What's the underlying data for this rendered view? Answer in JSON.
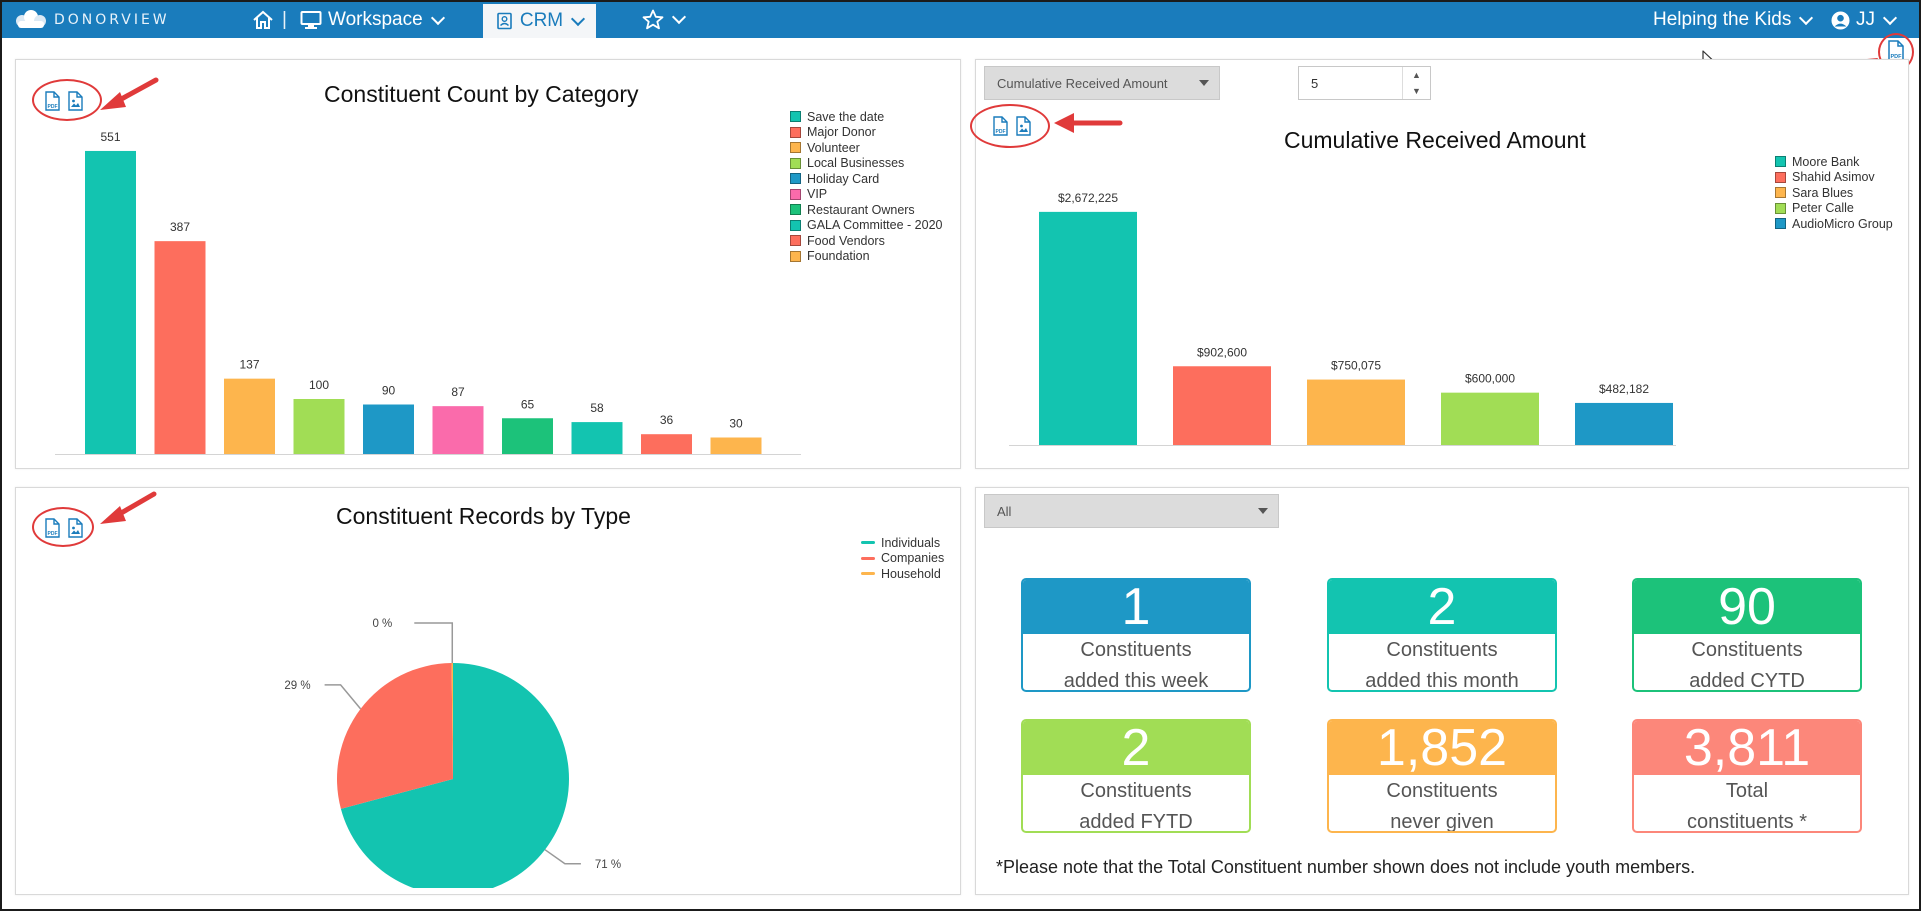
{
  "nav": {
    "logo_text": "DONORVIEW",
    "workspace_label": "Workspace",
    "crm_label": "CRM",
    "org_label": "Helping the Kids",
    "user_label": "JJ",
    "nav_color": "#1a7cbc"
  },
  "panel1": {
    "title": "Constituent Count by Category",
    "chart_data": {
      "type": "bar",
      "title": "Constituent Count by Category",
      "categories": [
        "Save the date",
        "Major Donor",
        "Volunteer",
        "Local Businesses",
        " Holiday Card",
        "VIP",
        "Restaurant Owners",
        "GALA Committee - 2020",
        "Food Vendors",
        "Foundation"
      ],
      "values": [
        551,
        387,
        137,
        100,
        90,
        87,
        65,
        58,
        36,
        30
      ],
      "data_labels": [
        "551",
        "387",
        "137",
        "100",
        "90",
        "87",
        "65",
        "58",
        "36",
        "30"
      ],
      "colors": [
        "#13c4b0",
        "#fd6e5d",
        "#fdb54d",
        "#a1dd55",
        "#1e98c6",
        "#fa6bab",
        "#1cc27a",
        "#13c4b0",
        "#fd6e5d",
        "#fdb54d"
      ],
      "ylim": [
        0,
        600
      ],
      "legend_position": "top-right",
      "xlabel": "",
      "ylabel": ""
    }
  },
  "panel2": {
    "title": "Cumulative Received Amount",
    "select_value": "Cumulative Received Amount",
    "count_value": "5",
    "chart_data": {
      "type": "bar",
      "title": "Cumulative Received Amount",
      "categories": [
        "Moore Bank",
        "Shahid Asimov",
        "Sara Blues",
        "Peter Calle",
        "AudioMicro Group"
      ],
      "values": [
        2672225,
        902600,
        750075,
        600000,
        482182
      ],
      "data_labels": [
        "$2,672,225",
        "$902,600",
        "$750,075",
        "$600,000",
        "$482,182"
      ],
      "colors": [
        "#13c4b0",
        "#fd6e5d",
        "#fdb54d",
        "#a1dd55",
        "#1e98c6"
      ],
      "ylim": [
        0,
        2900000
      ],
      "legend_position": "top-right",
      "xlabel": "",
      "ylabel": ""
    }
  },
  "panel3": {
    "title": "Constituent Records by Type",
    "chart_data": {
      "type": "pie",
      "title": "Constituent Records by Type",
      "categories": [
        "Individuals",
        "Companies",
        "Household"
      ],
      "values": [
        71,
        29,
        0.2
      ],
      "data_labels": [
        "71 %",
        "29 %",
        "0 %"
      ],
      "colors": [
        "#13c4b0",
        "#fd6e5d",
        "#fdb54d"
      ],
      "legend_position": "top-right"
    }
  },
  "panel4": {
    "filter_value": "All",
    "kpis": [
      {
        "value": "1",
        "line1": "Constituents",
        "line2": "added this week",
        "color": "#1e98c6"
      },
      {
        "value": "2",
        "line1": "Constituents",
        "line2": "added this month",
        "color": "#13c4b0"
      },
      {
        "value": "90",
        "line1": "Constituents",
        "line2": "added CYTD",
        "color": "#1cc27a"
      },
      {
        "value": "2",
        "line1": "Constituents",
        "line2": "added FYTD",
        "color": "#a1dd55"
      },
      {
        "value": "1,852",
        "line1": "Constituents",
        "line2": "never given",
        "color": "#fdb54d"
      },
      {
        "value": "3,811",
        "line1": "Total",
        "line2": "constituents *",
        "color": "#fc877a"
      }
    ],
    "note": "*Please note that the Total Constituent number shown does not include youth members."
  }
}
